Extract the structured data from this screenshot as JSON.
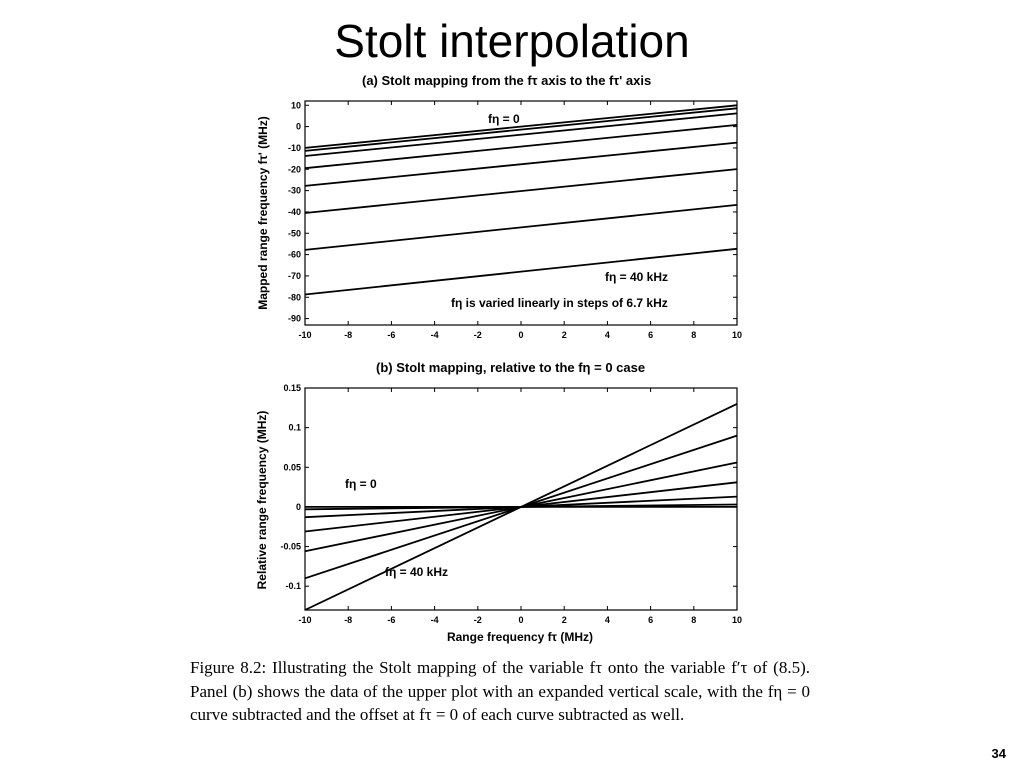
{
  "slide": {
    "title": "Stolt interpolation",
    "page_number": "34",
    "caption": "Figure 8.2: Illustrating the Stolt mapping of the variable fτ onto the variable f′τ of (8.5). Panel (b) shows the data of the upper plot with an expanded vertical scale, with the fη = 0 curve subtracted and the offset at fτ = 0 of each curve subtracted as well."
  },
  "chart_data": [
    {
      "type": "line",
      "title": "(a)   Stolt mapping from the  fτ axis to the fτ' axis",
      "xlabel": "",
      "ylabel": "Mapped range frequency  fτ'  (MHz)",
      "xlim": [
        -10,
        10
      ],
      "ylim": [
        -93,
        12
      ],
      "xticks": [
        "-10",
        "-8",
        "-6",
        "-4",
        "-2",
        "0",
        "2",
        "4",
        "6",
        "8",
        "10"
      ],
      "yticks": [
        "10",
        "0",
        "-10",
        "-20",
        "-30",
        "-40",
        "-50",
        "-60",
        "-70",
        "-80",
        "-90"
      ],
      "annotations": [
        "fη  =  0",
        "fη  =  40  kHz",
        "fη   is varied linearly in steps of   6.7  kHz"
      ],
      "x": [
        -10,
        10
      ],
      "series": [
        {
          "values": [
            -10,
            10
          ]
        },
        {
          "values": [
            -11.4,
            8.6
          ]
        },
        {
          "values": [
            -13.8,
            6.2
          ]
        },
        {
          "values": [
            -19.5,
            0.8
          ]
        },
        {
          "values": [
            -27.8,
            -7.5
          ]
        },
        {
          "values": [
            -40.5,
            -19.9
          ]
        },
        {
          "values": [
            -57.8,
            -36.7
          ]
        },
        {
          "values": [
            -78.7,
            -57.3
          ]
        }
      ]
    },
    {
      "type": "line",
      "title": "(b)   Stolt mapping, relative to the fη = 0 case",
      "xlabel": "Range frequency  fτ  (MHz)",
      "ylabel": "Relative range frequency  (MHz)",
      "xlim": [
        -10,
        10
      ],
      "ylim": [
        -0.13,
        0.15
      ],
      "xticks": [
        "-10",
        "-8",
        "-6",
        "-4",
        "-2",
        "0",
        "2",
        "4",
        "6",
        "8",
        "10"
      ],
      "yticks": [
        "0.15",
        "0.1",
        "0.05",
        "0",
        "-0.05",
        "-0.1"
      ],
      "annotations": [
        "fη  =  0",
        "fη  =  40  kHz"
      ],
      "x": [
        -10,
        10
      ],
      "series": [
        {
          "values": [
            0,
            0
          ]
        },
        {
          "values": [
            -0.003,
            0.003
          ]
        },
        {
          "values": [
            -0.013,
            0.013
          ]
        },
        {
          "values": [
            -0.031,
            0.031
          ]
        },
        {
          "values": [
            -0.056,
            0.056
          ]
        },
        {
          "values": [
            -0.09,
            0.09
          ]
        },
        {
          "values": [
            -0.13,
            0.13
          ]
        }
      ]
    }
  ]
}
